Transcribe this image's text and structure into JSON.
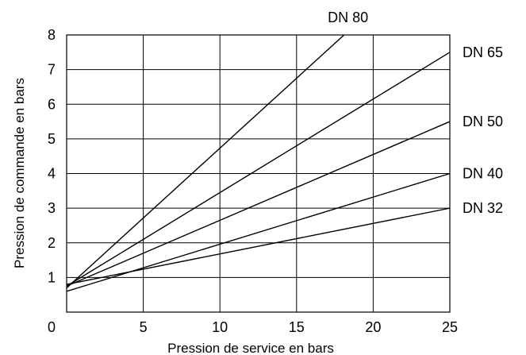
{
  "chart_data": {
    "type": "line",
    "xlabel": "Pression de service en bars",
    "ylabel": "Pression de commande en bars",
    "xlim": [
      0,
      25
    ],
    "ylim": [
      0,
      8
    ],
    "x_ticks": [
      0,
      5,
      10,
      15,
      20,
      25
    ],
    "x_tick_labels": [
      "0",
      "5",
      "10",
      "15",
      "20",
      "25"
    ],
    "y_ticks": [
      1,
      2,
      3,
      4,
      5,
      6,
      7,
      8
    ],
    "y_tick_labels": [
      "1",
      "2",
      "3",
      "4",
      "5",
      "6",
      "7",
      "8"
    ],
    "grid": true,
    "series": [
      {
        "name": "DN 80",
        "x": [
          0,
          18.1
        ],
        "y": [
          0.7,
          8.0
        ]
      },
      {
        "name": "DN 65",
        "x": [
          0,
          25
        ],
        "y": [
          0.75,
          7.5
        ]
      },
      {
        "name": "DN 50",
        "x": [
          0,
          25
        ],
        "y": [
          0.75,
          5.5
        ]
      },
      {
        "name": "DN 40",
        "x": [
          0,
          25
        ],
        "y": [
          0.6,
          4.0
        ]
      },
      {
        "name": "DN 32",
        "x": [
          0,
          25
        ],
        "y": [
          0.8,
          3.0
        ]
      }
    ]
  }
}
